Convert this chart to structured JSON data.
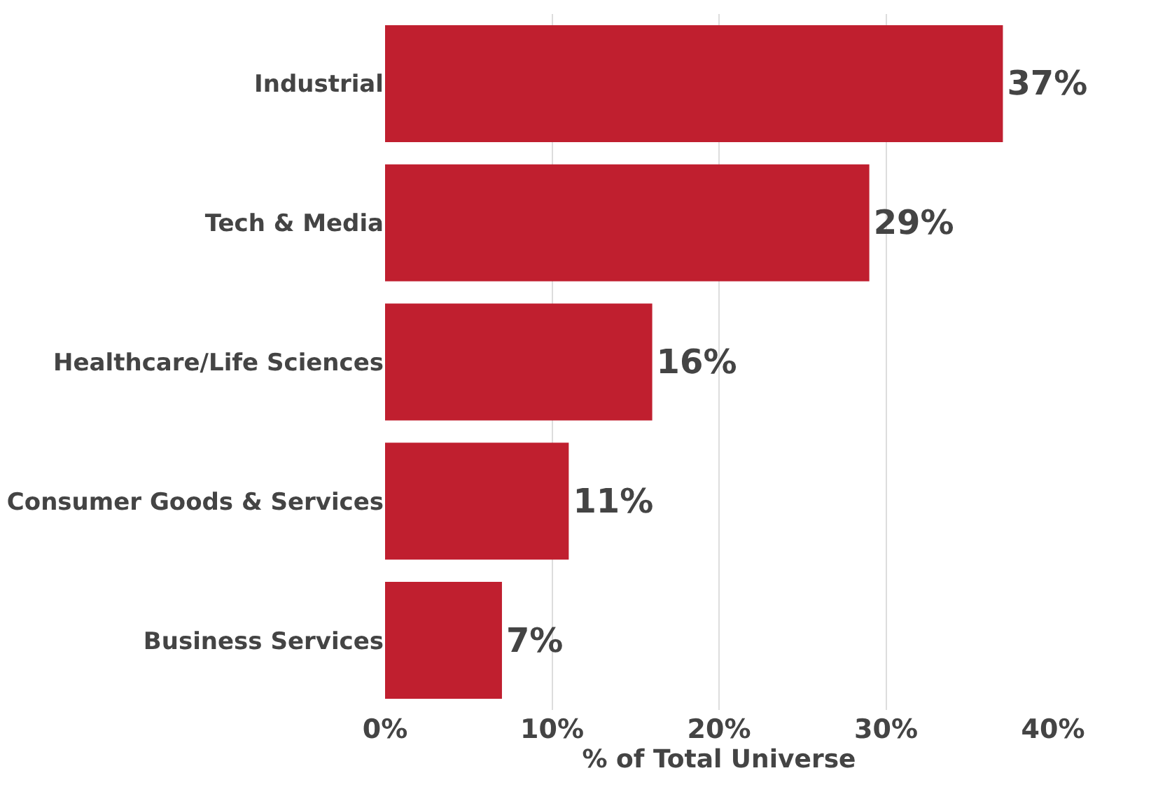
{
  "chart_data": {
    "type": "bar",
    "orientation": "horizontal",
    "xlabel": "% of Total Universe",
    "categories": [
      "Industrial",
      "Tech & Media",
      "Healthcare/Life Sciences",
      "Consumer Goods & Services",
      "Business Services"
    ],
    "values": [
      37,
      29,
      16,
      11,
      7
    ],
    "value_labels": [
      "37%",
      "29%",
      "16%",
      "11%",
      "7%"
    ],
    "color": "#c01f2f",
    "xlim": [
      0,
      40
    ],
    "xticks": [
      {
        "value": 0,
        "label": "0%"
      },
      {
        "value": 10,
        "label": "10%"
      },
      {
        "value": 20,
        "label": "20%"
      },
      {
        "value": 30,
        "label": "30%"
      },
      {
        "value": 40,
        "label": "40%"
      }
    ],
    "grid": "x",
    "legend": false
  }
}
